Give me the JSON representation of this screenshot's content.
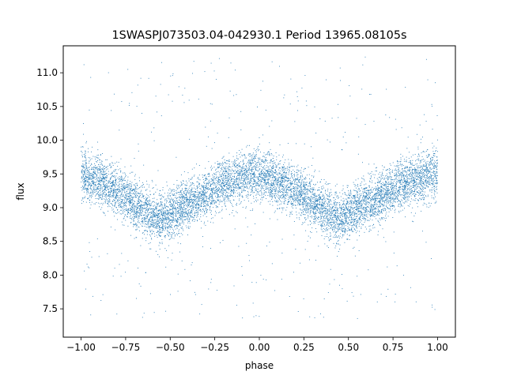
{
  "chart_data": {
    "type": "scatter",
    "title": "1SWASPJ073503.04-042930.1 Period 13965.08105s",
    "xlabel": "phase",
    "ylabel": "flux",
    "xlim": [
      -1.1,
      1.1
    ],
    "ylim": [
      7.08,
      11.4
    ],
    "xticks": [
      -1.0,
      -0.75,
      -0.5,
      -0.25,
      0.0,
      0.25,
      0.5,
      0.75,
      1.0
    ],
    "xtick_labels": [
      "−1.00",
      "−0.75",
      "−0.50",
      "−0.25",
      "0.00",
      "0.25",
      "0.50",
      "0.75",
      "1.00"
    ],
    "yticks": [
      7.5,
      8.0,
      8.5,
      9.0,
      9.5,
      10.0,
      10.5,
      11.0
    ],
    "ytick_labels": [
      "7.5",
      "8.0",
      "8.5",
      "9.0",
      "9.5",
      "10.0",
      "10.5",
      "11.0"
    ],
    "grid": false,
    "marker_color": "#1f77b4",
    "series": [
      {
        "x_range": [
          -1.0,
          1.0
        ],
        "phase_points": [
          -1.0,
          -0.9,
          -0.8,
          -0.7,
          -0.6,
          -0.55,
          -0.5,
          -0.4,
          -0.3,
          -0.2,
          -0.1,
          0.0,
          0.1,
          0.2,
          0.3,
          0.4,
          0.45,
          0.5,
          0.6,
          0.7,
          0.8,
          0.9,
          1.0
        ],
        "mean_flux": [
          9.5,
          9.38,
          9.26,
          9.08,
          8.88,
          8.85,
          8.9,
          9.05,
          9.2,
          9.35,
          9.45,
          9.5,
          9.38,
          9.26,
          9.08,
          8.88,
          8.85,
          8.9,
          9.05,
          9.2,
          9.35,
          9.45,
          9.5
        ],
        "scatter_sigma": 0.18,
        "outlier_range": [
          7.3,
          11.25
        ]
      }
    ]
  }
}
